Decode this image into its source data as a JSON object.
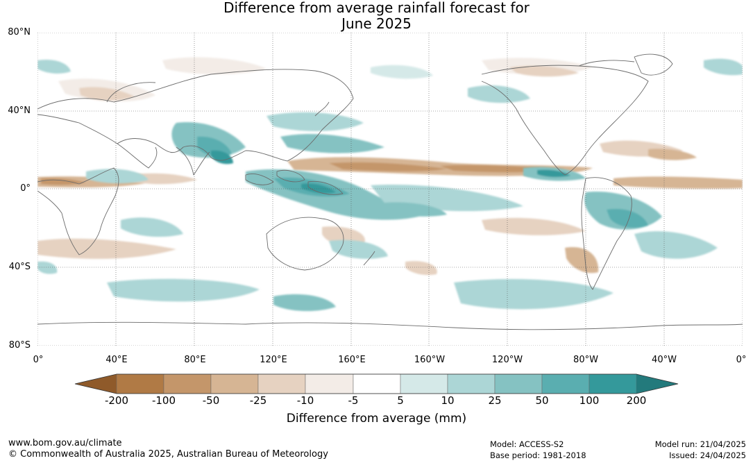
{
  "title": {
    "line1": "Difference from average rainfall forecast for",
    "line2": "June 2025"
  },
  "map": {
    "lat_labels": [
      "80°N",
      "40°N",
      "0°",
      "40°S",
      "80°S"
    ],
    "lon_labels": [
      "0°",
      "40°E",
      "80°E",
      "120°E",
      "160°E",
      "160°W",
      "120°W",
      "80°W",
      "40°W",
      "0°"
    ],
    "gridlines": "dotted"
  },
  "legend": {
    "label": "Difference from average (mm)",
    "ticks": [
      "-200",
      "-100",
      "-50",
      "-25",
      "-10",
      "-5",
      "5",
      "10",
      "25",
      "50",
      "100",
      "200"
    ],
    "colors": [
      "#8f5a2a",
      "#b07a45",
      "#c4966a",
      "#d6b594",
      "#e6d2c1",
      "#f3ece7",
      "#ffffff",
      "#d5e9e8",
      "#acd6d6",
      "#85c2c2",
      "#5aaeb0",
      "#34999b",
      "#237a7c"
    ]
  },
  "footer": {
    "url": "www.bom.gov.au/climate",
    "copyright": "© Commonwealth of Australia 2025, Australian Bureau of Meteorology",
    "model": "Model: ACCESS-S2",
    "base_period": "Base period: 1981-2018",
    "model_run": "Model run: 21/04/2025",
    "issued": "Issued: 24/04/2025"
  }
}
